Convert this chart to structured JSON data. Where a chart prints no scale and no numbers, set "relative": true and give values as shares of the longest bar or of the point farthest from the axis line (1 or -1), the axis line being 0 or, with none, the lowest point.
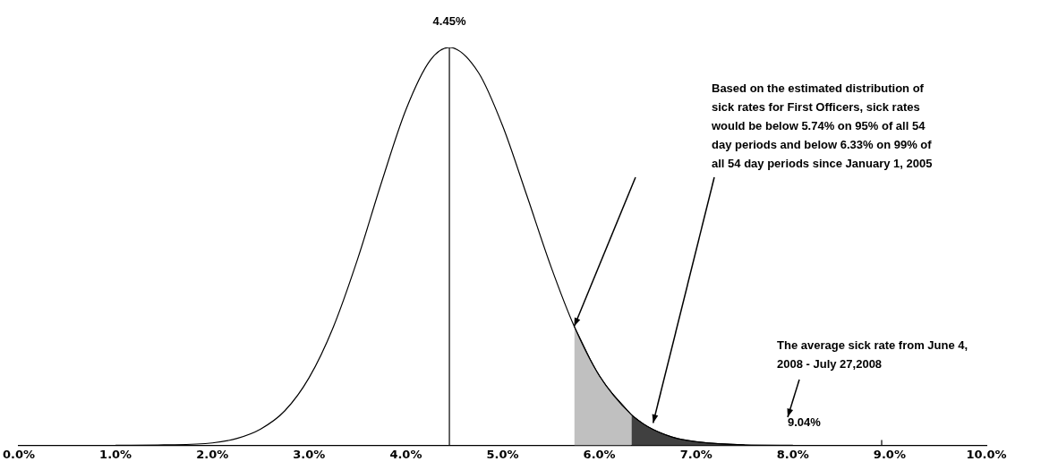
{
  "chart_data": {
    "type": "line",
    "relative": true,
    "xlim": [
      0,
      10
    ],
    "xticks": [
      {
        "value": 0,
        "label": "0.0%"
      },
      {
        "value": 1,
        "label": "1.0%"
      },
      {
        "value": 2,
        "label": "2.0%"
      },
      {
        "value": 3,
        "label": "3.0%"
      },
      {
        "value": 4,
        "label": "4.0%"
      },
      {
        "value": 5,
        "label": "5.0%"
      },
      {
        "value": 6,
        "label": "6.0%"
      },
      {
        "value": 7,
        "label": "7.0%"
      },
      {
        "value": 8,
        "label": "8.0%"
      },
      {
        "value": 9,
        "label": "9.0%"
      },
      {
        "value": 10,
        "label": "10.0%"
      }
    ],
    "series": [
      {
        "color": "#000000",
        "x": [
          1.0,
          1.5,
          2.0,
          2.25,
          2.5,
          2.75,
          3.0,
          3.25,
          3.5,
          3.75,
          4.0,
          4.25,
          4.45,
          4.75,
          5.0,
          5.25,
          5.5,
          5.74,
          6.0,
          6.33,
          6.5,
          6.75,
          7.0,
          7.5,
          8.0
        ],
        "values": [
          0,
          0.001,
          0.006,
          0.017,
          0.041,
          0.087,
          0.17,
          0.297,
          0.467,
          0.662,
          0.843,
          0.967,
          1,
          0.937,
          0.803,
          0.628,
          0.449,
          0.299,
          0.175,
          0.077,
          0.047,
          0.021,
          0.009,
          0.001,
          0
        ]
      },
      {
        "type": "area",
        "color": "#c0c0c0",
        "x": [
          5.74,
          6.0,
          6.33
        ],
        "values": [
          0.299,
          0.175,
          0.077
        ]
      },
      {
        "type": "area",
        "color": "#404040",
        "x": [
          6.33,
          6.5,
          6.75,
          7.0,
          7.5
        ],
        "values": [
          0.077,
          0.047,
          0.021,
          0.009,
          0.001
        ]
      }
    ],
    "ref_lines": [
      {
        "axis": "x",
        "value": 4.45,
        "label": "4.45%",
        "color": "#000000"
      }
    ],
    "annotations": [
      "Based on the estimated distribution of sick rates for First Officers, sick rates would be below 5.74% on 95% of all 54 day periods and below 6.33% on 99% of all 54 day periods since January 1, 2005",
      "The average sick rate from June 4, 2008 - July 27,2008",
      "9.04%"
    ],
    "grid": false,
    "legend": false,
    "marker": "none",
    "line_style": "solid"
  }
}
